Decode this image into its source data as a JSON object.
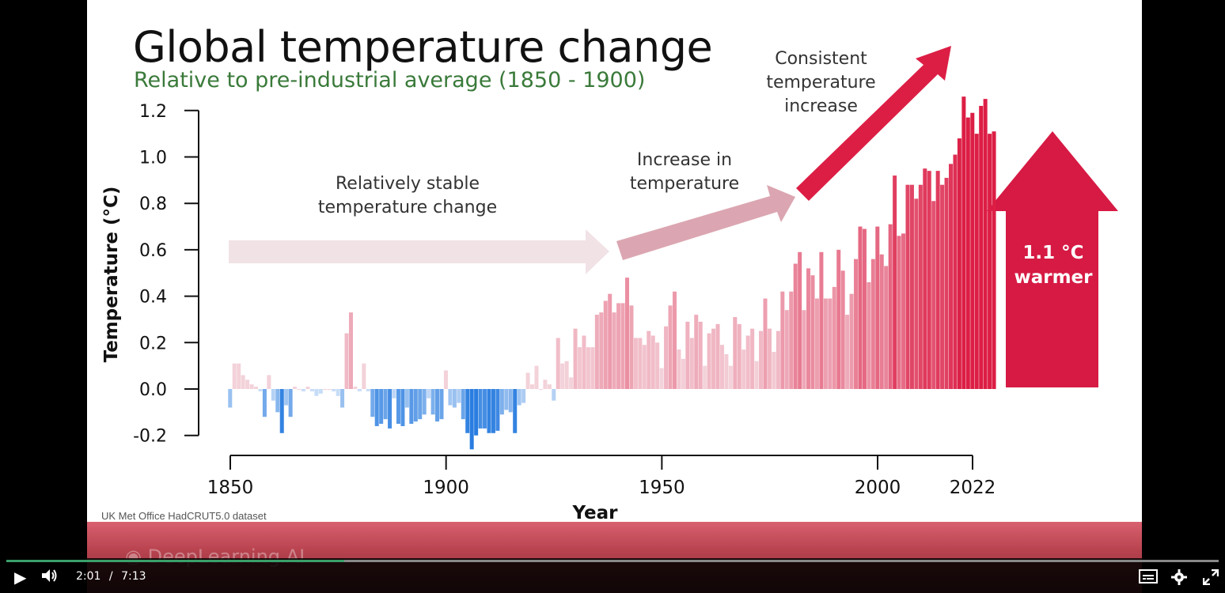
{
  "slide": {
    "title": "Global temperature change",
    "subtitle": "Relative to pre-industrial average (1850 - 1900)",
    "source": "UK Met Office HadCRUT5.0 dataset",
    "annotations": {
      "stable": [
        "Relatively stable",
        "temperature change"
      ],
      "increase": [
        "Increase in",
        "temperature"
      ],
      "consistent": [
        "Consistent",
        "temperature",
        "increase"
      ],
      "warmer": [
        "1.1 °C",
        "warmer"
      ]
    },
    "brand": "DeepLearning.AI"
  },
  "chart_data": {
    "type": "bar",
    "title": "Global temperature change",
    "subtitle": "Relative to pre-industrial average (1850 - 1900)",
    "xlabel": "Year",
    "ylabel": "Temperature (°C)",
    "xticks": [
      "1850",
      "1900",
      "1950",
      "2000",
      "2022"
    ],
    "yticks": [
      "-0.2",
      "0.0",
      "0.2",
      "0.4",
      "0.6",
      "0.8",
      "1.0",
      "1.2"
    ],
    "ylim": [
      -0.2,
      1.2
    ],
    "xlim": [
      1850,
      2022
    ],
    "years_start": 1850,
    "values": [
      -0.08,
      0.11,
      0.11,
      0.06,
      0.04,
      0.02,
      0.01,
      -0.01,
      -0.12,
      0.06,
      -0.05,
      -0.1,
      -0.19,
      -0.07,
      -0.12,
      0.01,
      0.0,
      -0.01,
      0.01,
      -0.01,
      -0.03,
      -0.02,
      0.0,
      0.0,
      -0.01,
      -0.03,
      -0.08,
      0.24,
      0.33,
      0.01,
      -0.01,
      0.11,
      -0.01,
      -0.12,
      -0.16,
      -0.15,
      -0.13,
      -0.17,
      -0.04,
      -0.15,
      -0.16,
      -0.08,
      -0.15,
      -0.14,
      -0.13,
      -0.11,
      -0.04,
      -0.11,
      -0.14,
      -0.13,
      0.08,
      -0.07,
      -0.08,
      -0.06,
      -0.13,
      -0.19,
      -0.26,
      -0.2,
      -0.17,
      -0.17,
      -0.19,
      -0.19,
      -0.18,
      -0.11,
      -0.09,
      -0.1,
      -0.19,
      -0.07,
      -0.06,
      0.07,
      0.02,
      0.1,
      0.0,
      0.04,
      0.02,
      -0.05,
      0.22,
      0.11,
      0.12,
      0.05,
      0.26,
      0.18,
      0.23,
      0.18,
      0.18,
      0.32,
      0.33,
      0.38,
      0.41,
      0.33,
      0.37,
      0.37,
      0.48,
      0.36,
      0.22,
      0.22,
      0.19,
      0.25,
      0.23,
      0.2,
      0.09,
      0.27,
      0.36,
      0.42,
      0.17,
      0.13,
      0.29,
      0.22,
      0.32,
      0.29,
      0.1,
      0.24,
      0.26,
      0.28,
      0.19,
      0.15,
      0.1,
      0.31,
      0.28,
      0.17,
      0.23,
      0.26,
      0.12,
      0.25,
      0.39,
      0.26,
      0.16,
      0.25,
      0.42,
      0.34,
      0.42,
      0.54,
      0.59,
      0.34,
      0.52,
      0.49,
      0.39,
      0.59,
      0.39,
      0.39,
      0.44,
      0.6,
      0.51,
      0.32,
      0.41,
      0.56,
      0.7,
      0.69,
      0.46,
      0.56,
      0.7,
      0.58,
      0.53,
      0.71,
      0.92,
      0.66,
      0.67,
      0.88,
      0.88,
      0.82,
      0.88,
      0.95,
      0.94,
      0.81,
      0.94,
      0.88,
      0.91,
      0.97,
      1.01,
      1.08,
      1.26,
      1.17,
      1.19,
      1.1,
      1.22,
      1.25,
      1.1,
      1.11
    ]
  },
  "player": {
    "current_time": "2:01",
    "separator": "/",
    "duration": "7:13",
    "progress_fraction": 0.279
  },
  "colors": {
    "cold": "#2a7de0",
    "warm": "#dc1e45",
    "arrow_stable": "#f1e2e6",
    "arrow_increase": "#dba6b1",
    "arrow_consistent": "#dc1e45",
    "arrow_warmer": "#d61a44"
  }
}
